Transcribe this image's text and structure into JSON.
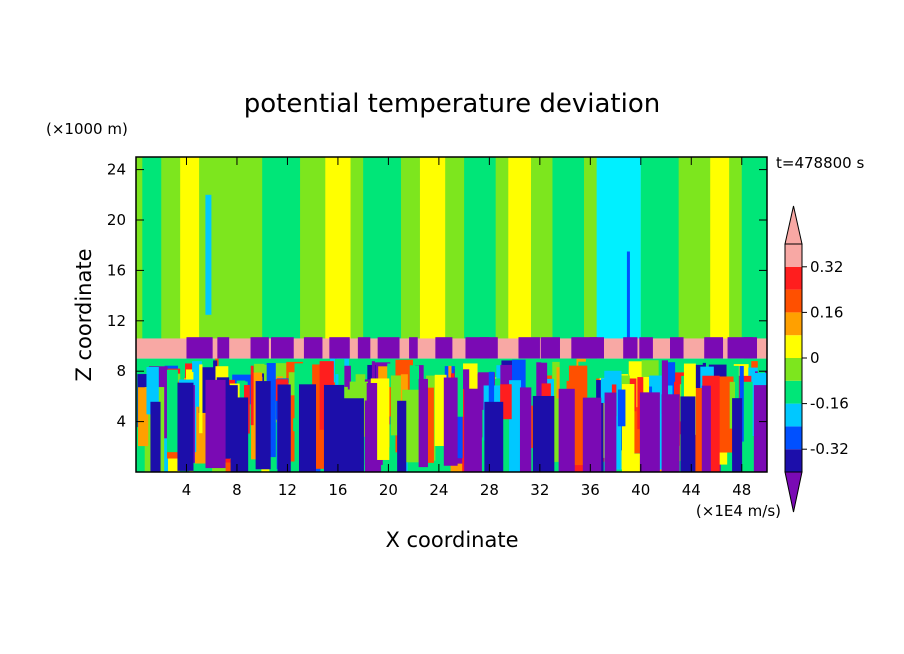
{
  "chart_data": {
    "type": "heatmap",
    "title": "potential temperature deviation",
    "xlabel": "X coordinate",
    "ylabel": "Z coordinate",
    "x_unit": "(×1E4 m/s)",
    "y_unit": "(×1000 m)",
    "time_label": "t=478800 s",
    "xlim": [
      0,
      50
    ],
    "ylim": [
      0,
      25
    ],
    "x_ticks": [
      4,
      8,
      12,
      16,
      20,
      24,
      28,
      32,
      36,
      40,
      44,
      48
    ],
    "y_ticks": [
      4,
      8,
      12,
      16,
      20,
      24
    ],
    "colorbar": {
      "levels": [
        -0.4,
        -0.32,
        -0.24,
        -0.16,
        -0.08,
        0,
        0.08,
        0.16,
        0.24,
        0.32,
        0.4
      ],
      "labels": [
        "0.32",
        "0.16",
        "0",
        "-0.16",
        "-0.32"
      ],
      "label_values": [
        0.32,
        0.16,
        0,
        -0.16,
        -0.32
      ],
      "colors": [
        "#7a0ab4",
        "#1c0eaa",
        "#0050ff",
        "#00c8ff",
        "#00e678",
        "#7de61e",
        "#ffff00",
        "#ffa000",
        "#ff5000",
        "#ff1e1e",
        "#f8a8a4"
      ],
      "extend": "both"
    },
    "colors": {
      "upper_green": "#7de61e",
      "stable_band": "#f8a8a4",
      "yellow": "#ffff00",
      "cyan": "#00f0ff",
      "purple": "#7a0ab4",
      "navy": "#1c0eaa"
    }
  }
}
